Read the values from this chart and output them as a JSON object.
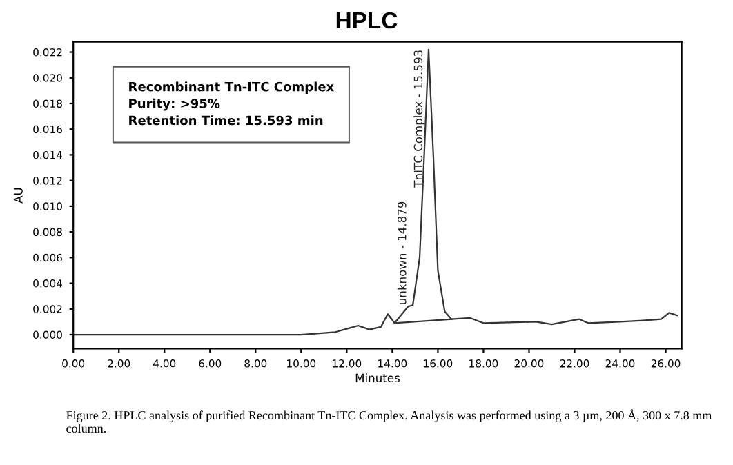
{
  "chart_data": {
    "type": "line",
    "title": "HPLC",
    "xlabel": "Minutes",
    "ylabel": "AU",
    "xlim": [
      0,
      26.7
    ],
    "ylim": [
      -0.0011,
      0.0228
    ],
    "xticks": [
      {
        "value": 0,
        "label": "0.00"
      },
      {
        "value": 2,
        "label": "2.00"
      },
      {
        "value": 4,
        "label": "4.00"
      },
      {
        "value": 6,
        "label": "6.00"
      },
      {
        "value": 8,
        "label": "8.00"
      },
      {
        "value": 10,
        "label": "10.00"
      },
      {
        "value": 12,
        "label": "12.00"
      },
      {
        "value": 14,
        "label": "14.00"
      },
      {
        "value": 16,
        "label": "16.00"
      },
      {
        "value": 18,
        "label": "18.00"
      },
      {
        "value": 20,
        "label": "20.00"
      },
      {
        "value": 22,
        "label": "22.00"
      },
      {
        "value": 24,
        "label": "24.00"
      },
      {
        "value": 26,
        "label": "26.00"
      }
    ],
    "yticks": [
      {
        "value": 0,
        "label": "0.000"
      },
      {
        "value": 0.002,
        "label": "0.002"
      },
      {
        "value": 0.004,
        "label": "0.004"
      },
      {
        "value": 0.006,
        "label": "0.006"
      },
      {
        "value": 0.008,
        "label": "0.008"
      },
      {
        "value": 0.01,
        "label": "0.010"
      },
      {
        "value": 0.012,
        "label": "0.012"
      },
      {
        "value": 0.014,
        "label": "0.014"
      },
      {
        "value": 0.016,
        "label": "0.016"
      },
      {
        "value": 0.018,
        "label": "0.018"
      },
      {
        "value": 0.02,
        "label": "0.020"
      },
      {
        "value": 0.022,
        "label": "0.022"
      }
    ],
    "grid": false,
    "legend": false,
    "series": [
      {
        "color": "#333333",
        "x": [
          0,
          4,
          10,
          11.5,
          12.5,
          13.0,
          13.5,
          13.8,
          14.1,
          14.7,
          14.9,
          15.2,
          15.4,
          15.593,
          15.8,
          16.0,
          16.3,
          16.6,
          17.4,
          18,
          20.3,
          21,
          22.2,
          22.6,
          24,
          25,
          25.8,
          26.15,
          26.5
        ],
        "values": [
          0.0,
          0.0,
          0.0,
          0.0002,
          0.0007,
          0.0004,
          0.0006,
          0.0016,
          0.0009,
          0.0022,
          0.0023,
          0.006,
          0.014,
          0.0222,
          0.014,
          0.005,
          0.0018,
          0.0012,
          0.0013,
          0.0009,
          0.001,
          0.0008,
          0.0012,
          0.0009,
          0.001,
          0.0011,
          0.0012,
          0.0017,
          0.0015
        ]
      },
      {
        "color": "#333333",
        "x": [
          14.1,
          16.6
        ],
        "values": [
          0.0009,
          0.0012
        ]
      }
    ],
    "annotations": [
      {
        "text": "unknown - 14.879",
        "x": 14.879,
        "y": 0.0023
      },
      {
        "text": "TnITC Complex - 15.593",
        "x": 15.593,
        "y": 0.0222
      },
      "Recombinant Tn-ITC Complex\nPurity: >95%\nRetention Time: 15.593 min",
      "Figure 2. HPLC analysis of purified Recombinant Tn-ITC Complex. Analysis was performed using a 3 µm, 200 Å, 300 x 7.8 mm column."
    ]
  }
}
